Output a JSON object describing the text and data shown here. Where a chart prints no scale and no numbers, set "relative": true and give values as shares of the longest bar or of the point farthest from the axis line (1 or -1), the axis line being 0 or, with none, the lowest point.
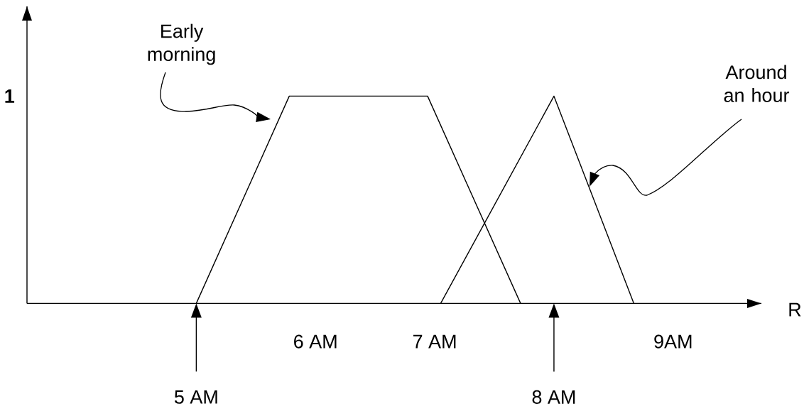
{
  "chart_data": {
    "type": "line",
    "relative": true,
    "xlabel": "R",
    "xlim": [
      3.58,
      9.74
    ],
    "xticks": [
      {
        "value": 6,
        "label": "6 AM"
      },
      {
        "value": 7,
        "label": "7 AM"
      },
      {
        "value": 9,
        "label": "9AM"
      }
    ],
    "series": [
      {
        "color": "#000000",
        "x": [
          5,
          5.78,
          6.94,
          7.72
        ],
        "values": [
          0,
          1,
          1,
          0
        ]
      },
      {
        "color": "#000000",
        "x": [
          7.05,
          8,
          8.67
        ],
        "values": [
          0,
          1,
          0
        ]
      }
    ],
    "ref_lines": [
      {
        "axis": "x",
        "value": 5,
        "label": "5 AM"
      },
      {
        "axis": "x",
        "value": 8,
        "label": "8 AM"
      }
    ],
    "annotations": [
      "1",
      "Early morning",
      "Around an hour"
    ]
  }
}
